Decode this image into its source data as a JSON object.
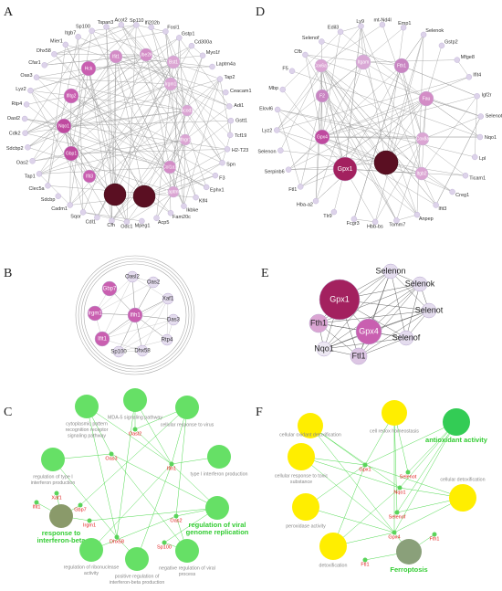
{
  "panel_a": {
    "letter": "A",
    "outer_nodes": [
      "Tspan3",
      "Acot2",
      "Sp110",
      "Ifi202b",
      "Fosl1",
      "Gstp1",
      "Cd300a",
      "Myo1f",
      "Laptm4a",
      "Tap2",
      "Ceacam1",
      "Adi1",
      "Gstt1",
      "Tcf19",
      "H2-T23",
      "Spn",
      "F3",
      "Ephx1",
      "Klf4",
      "Ikbke",
      "Fam20c",
      "Acp5",
      "Mpeg1",
      "Odc1",
      "Cfh",
      "Cdl1",
      "Sqor",
      "Cadm1",
      "Sdcbp",
      "Clec5a",
      "Tap1",
      "Oas2",
      "Sdcbp2",
      "Cdk2",
      "Oasl2",
      "Rtp4",
      "Lyz2",
      "Oas3",
      "Cfar1",
      "Dhx58",
      "Mier1",
      "Itgb7",
      "Sp100"
    ],
    "inner_nodes": [
      "Hck",
      "Ifit1",
      "Ube2l6",
      "Bst1",
      "Irgm1",
      "Ifitg2",
      "Nqo1",
      "Gbp1",
      "Ifit3",
      "Laptm5",
      "Col1a1",
      "Ifngr1",
      "Acod1"
    ]
  },
  "panel_d": {
    "letter": "D",
    "outer_nodes": [
      "Ly9",
      "mt-Nd4l",
      "Emp1",
      "Selenok",
      "Gstp2",
      "Mfge8",
      "Ifit4",
      "Igf2r",
      "Selenot",
      "Nqo1",
      "Lpl",
      "Ticam1",
      "Creg1",
      "Ifit3",
      "Anpep",
      "Tomm7",
      "Hbb-bs",
      "Fcgr3",
      "Tlr9",
      "Hba-a2",
      "Ftl1",
      "Serpinb6",
      "Selenon",
      "Lyz2",
      "Elovl6",
      "Mbp",
      "F5",
      "Cfb",
      "Selenof",
      "Edil3"
    ],
    "inner_nodes": [
      "Itgam",
      "Cox6a1",
      "Fth1",
      "F2",
      "Fau",
      "Cox8a",
      "Gpx4",
      "Gpx1",
      "Itgb2"
    ]
  },
  "panel_b": {
    "letter": "B",
    "nodes": [
      "Oasl2",
      "Oas2",
      "Xaf1",
      "Das3",
      "Rtp4",
      "Dhx58",
      "Sp100",
      "Ifit1",
      "Irgm1",
      "Gbp7",
      "Ifih1"
    ]
  },
  "panel_e": {
    "letter": "E",
    "nodes": [
      "Selenon",
      "Selenok",
      "Selenot",
      "Selenof",
      "Ftl1",
      "Nqo1",
      "Fth1",
      "Gpx1",
      "Gpx4"
    ]
  },
  "panel_c": {
    "letter": "C",
    "terms": [
      [
        "MDA-5 signaling pathway"
      ],
      [
        "cytoplasmic pattern",
        "recognition receptor",
        "signaling pathway"
      ],
      [
        "cellular response to virus"
      ],
      [
        "regulation of type I",
        "interferon production"
      ],
      [
        "type I interferon production"
      ],
      [
        "response to",
        "interferon-beta"
      ],
      [
        "regulation of viral",
        "genome replication"
      ],
      [
        "regulation of ribonuclease",
        "activity"
      ],
      [
        "positive regulation of",
        "interferon-beta production"
      ],
      [
        "negative regulation of viral",
        "process"
      ]
    ],
    "genes": [
      "Oas3",
      "Oasl2",
      "Ifih1",
      "Xaf1",
      "Ifit1",
      "Gbp7",
      "Irgm1",
      "Dhx58",
      "Oas2",
      "Sp100"
    ]
  },
  "panel_f": {
    "letter": "F",
    "terms": [
      [
        "cell redox homeostasis"
      ],
      [
        "cellular oxidant detoxification"
      ],
      [
        "cellular response to toxic",
        "substance"
      ],
      [
        "antioxidant activity"
      ],
      [
        "cellular detoxification"
      ],
      [
        "peroxidase activity"
      ],
      [
        "detoxification"
      ],
      [
        "Ferroptosis"
      ]
    ],
    "genes": [
      "Gpx1",
      "Selenot",
      "Nqo1",
      "Selenof",
      "Gpx4",
      "Fth1",
      "Ftl1"
    ]
  }
}
